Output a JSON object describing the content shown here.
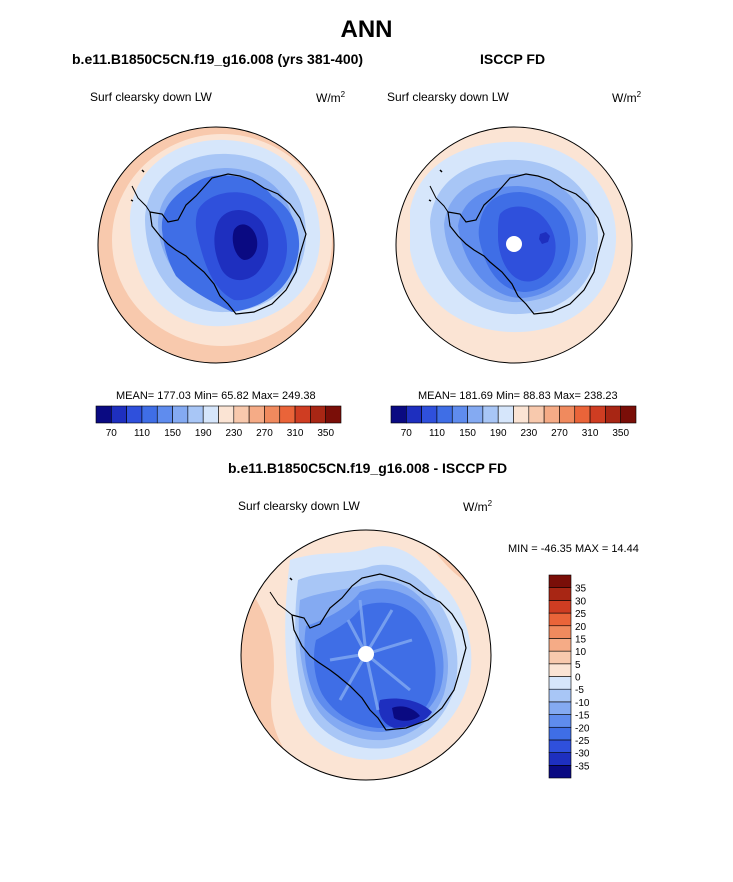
{
  "figure": {
    "title": "ANN"
  },
  "palette": [
    "#0a0a82",
    "#1e2fbf",
    "#2f50dc",
    "#3f6ee6",
    "#5f8cee",
    "#84aaf2",
    "#a8c6f6",
    "#d6e6fb",
    "#fbe4d4",
    "#f8c9ad",
    "#f5ab86",
    "#f08a5e",
    "#ea6439",
    "#cf3d22",
    "#a82614",
    "#7a0e08"
  ],
  "chart_data": [
    {
      "type": "heatmap",
      "projection": "south-polar-stereographic",
      "title": "b.e11.B1850C5CN.f19_g16.008 (yrs 381-400)",
      "variable": "Surf clearsky down LW",
      "units_base": "W/m",
      "units_exp": "2",
      "stats_text": "MEAN= 177.03  Min=  65.82  Max= 249.38",
      "stats": {
        "mean": 177.03,
        "min": 65.82,
        "max": 249.38
      },
      "colorbar": {
        "orientation": "horizontal",
        "levels": [
          70,
          90,
          110,
          130,
          150,
          170,
          190,
          210,
          230,
          250,
          270,
          290,
          310,
          330,
          350
        ],
        "tick_labels": [
          "70",
          "110",
          "150",
          "190",
          "230",
          "270",
          "310",
          "350"
        ]
      }
    },
    {
      "type": "heatmap",
      "projection": "south-polar-stereographic",
      "title": "ISCCP FD",
      "variable": "Surf clearsky down LW",
      "units_base": "W/m",
      "units_exp": "2",
      "stats_text": "MEAN= 181.69  Min=  88.83  Max= 238.23",
      "stats": {
        "mean": 181.69,
        "min": 88.83,
        "max": 238.23
      },
      "colorbar": {
        "orientation": "horizontal",
        "levels": [
          70,
          90,
          110,
          130,
          150,
          170,
          190,
          210,
          230,
          250,
          270,
          290,
          310,
          330,
          350
        ],
        "tick_labels": [
          "70",
          "110",
          "150",
          "190",
          "230",
          "270",
          "310",
          "350"
        ]
      }
    },
    {
      "type": "heatmap",
      "projection": "south-polar-stereographic",
      "title": "b.e11.B1850C5CN.f19_g16.008 - ISCCP FD",
      "variable": "Surf clearsky down LW",
      "units_base": "W/m",
      "units_exp": "2",
      "stats_text": "MIN = -46.35 MAX =  14.44",
      "stats": {
        "min": -46.35,
        "max": 14.44
      },
      "colorbar": {
        "orientation": "vertical",
        "levels": [
          -35,
          -30,
          -25,
          -20,
          -15,
          -10,
          -5,
          0,
          5,
          10,
          15,
          20,
          25,
          30,
          35
        ],
        "tick_labels": [
          "35",
          "30",
          "25",
          "20",
          "15",
          "10",
          "5",
          "0",
          "-5",
          "-10",
          "-15",
          "-20",
          "-25",
          "-30",
          "-35"
        ]
      }
    }
  ]
}
